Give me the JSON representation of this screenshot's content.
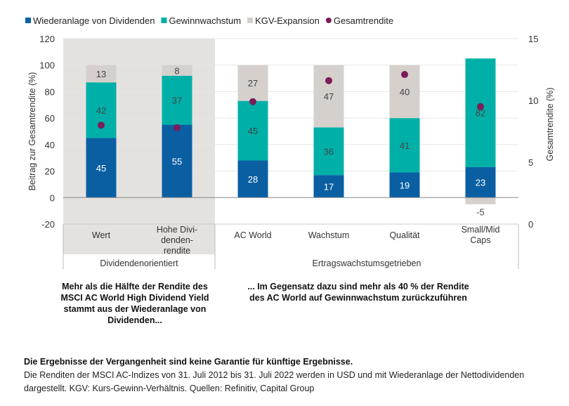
{
  "chart_data": {
    "type": "bar",
    "stacked": true,
    "legend_position": "top-left",
    "categories": [
      "Wert",
      "Hohe Divi-\ndenden-\nrendite",
      "AC World",
      "Wachstum",
      "Qualität",
      "Small/Mid\nCaps"
    ],
    "groups": [
      {
        "label": "Dividendenorientiert",
        "categories": [
          0,
          1
        ],
        "shaded": true
      },
      {
        "label": "Ertragswachstumsgetrieben",
        "categories": [
          2,
          3,
          4,
          5
        ],
        "shaded": false
      }
    ],
    "series": [
      {
        "name": "Wiederanlage von Dividenden",
        "color": "#0a5fa3",
        "values": [
          45,
          55,
          28,
          17,
          19,
          23
        ]
      },
      {
        "name": "Gewinnwachstum",
        "color": "#00b0a8",
        "values": [
          42,
          37,
          45,
          36,
          41,
          82
        ]
      },
      {
        "name": "KGV-Expansion",
        "color": "#d5d0cc",
        "values": [
          13,
          8,
          27,
          47,
          40,
          -5
        ]
      }
    ],
    "dot_series": {
      "name": "Gesamtrendite",
      "color": "#7a1d5a",
      "axis": "right",
      "values": [
        8.0,
        7.8,
        9.9,
        11.6,
        12.1,
        9.5
      ]
    },
    "ylabel": "Beitrag zur Gesamtrendite (%)",
    "ylim": [
      -20,
      120
    ],
    "yticks": [
      -20,
      0,
      20,
      40,
      60,
      80,
      100,
      120
    ],
    "y2label": "Gesamtrendite (%)",
    "y2lim": [
      0,
      15
    ],
    "y2ticks": [
      0,
      5,
      10,
      15
    ],
    "grid": true
  },
  "notes": {
    "left": "Mehr als die Hälfte der Rendite des MSCI AC World High Dividend Yield stammt aus der Wiederanlage von Dividenden...",
    "right": "... Im Gegensatz dazu sind mehr als 40 % der Rendite des AC World auf Gewinnwachstum zurückzuführen"
  },
  "footer": {
    "disclaimer": "Die Ergebnisse der Vergangenheit sind keine Garantie für künftige Ergebnisse.",
    "text": "Die Renditen der MSCI AC-Indizes von 31. Juli 2012 bis 31. Juli 2022 werden in USD und mit Wiederanlage der Nettodividenden dargestellt. KGV: Kurs-Gewinn-Verhältnis. Quellen: Refinitiv, Capital Group"
  }
}
